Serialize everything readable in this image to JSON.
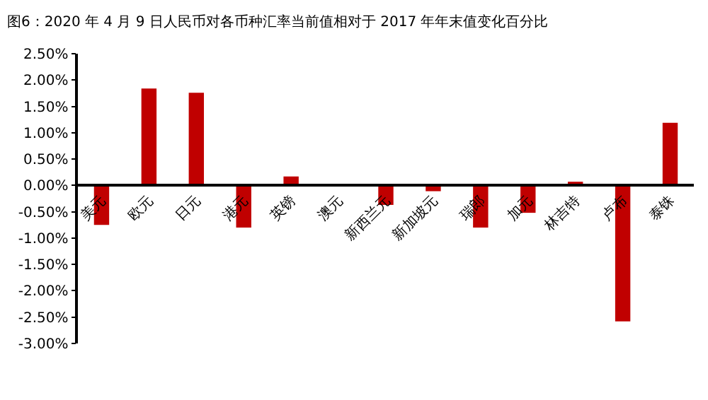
{
  "chart_data": {
    "type": "bar",
    "title": "图6：2020 年 4 月 9 日人民币对各币种汇率当前值相对于 2017 年年末值变化百分比",
    "categories": [
      "美元",
      "欧元",
      "日元",
      "港元",
      "英镑",
      "澳元",
      "新西兰元",
      "新加坡元",
      "瑞郎",
      "加元",
      "林吉特",
      "卢布",
      "泰铢"
    ],
    "values": [
      -0.75,
      1.84,
      1.76,
      -0.8,
      0.17,
      0.0,
      -0.37,
      -0.11,
      -0.8,
      -0.52,
      0.07,
      -2.58,
      1.19
    ],
    "color": "#c00000",
    "ylim": [
      -3.0,
      2.5
    ],
    "yticks": [
      {
        "value": -3.0,
        "label": "-3.00%"
      },
      {
        "value": -2.5,
        "label": "-2.50%"
      },
      {
        "value": -2.0,
        "label": "-2.00%"
      },
      {
        "value": -1.5,
        "label": "-1.50%"
      },
      {
        "value": -1.0,
        "label": "-1.00%"
      },
      {
        "value": -0.5,
        "label": "-0.50%"
      },
      {
        "value": 0.0,
        "label": "0.00%"
      },
      {
        "value": 0.5,
        "label": "0.50%"
      },
      {
        "value": 1.0,
        "label": "1.00%"
      },
      {
        "value": 1.5,
        "label": "1.50%"
      },
      {
        "value": 2.0,
        "label": "2.00%"
      },
      {
        "value": 2.5,
        "label": "2.50%"
      }
    ]
  }
}
